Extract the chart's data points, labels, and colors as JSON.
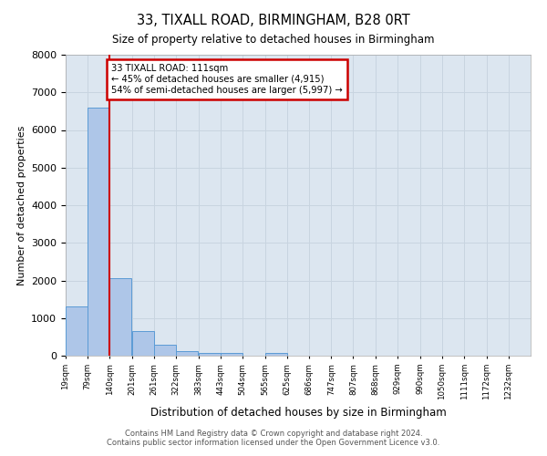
{
  "title": "33, TIXALL ROAD, BIRMINGHAM, B28 0RT",
  "subtitle": "Size of property relative to detached houses in Birmingham",
  "xlabel": "Distribution of detached houses by size in Birmingham",
  "ylabel": "Number of detached properties",
  "bin_labels": [
    "19sqm",
    "79sqm",
    "140sqm",
    "201sqm",
    "261sqm",
    "322sqm",
    "383sqm",
    "443sqm",
    "504sqm",
    "565sqm",
    "625sqm",
    "686sqm",
    "747sqm",
    "807sqm",
    "868sqm",
    "929sqm",
    "990sqm",
    "1050sqm",
    "1111sqm",
    "1172sqm",
    "1232sqm"
  ],
  "bar_heights": [
    1320,
    6600,
    2070,
    650,
    290,
    130,
    80,
    80,
    0,
    80,
    0,
    0,
    0,
    0,
    0,
    0,
    0,
    0,
    0,
    0,
    0
  ],
  "bar_color": "#aec6e8",
  "bar_edge_color": "#5b9bd5",
  "annotation_line0": "33 TIXALL ROAD: 111sqm",
  "annotation_line1": "← 45% of detached houses are smaller (4,915)",
  "annotation_line2": "54% of semi-detached houses are larger (5,997) →",
  "annotation_box_color": "#ffffff",
  "annotation_box_edge": "#cc0000",
  "vline_color": "#cc0000",
  "ylim": [
    0,
    8000
  ],
  "yticks": [
    0,
    1000,
    2000,
    3000,
    4000,
    5000,
    6000,
    7000,
    8000
  ],
  "grid_color": "#c8d4e0",
  "bg_color": "#dce6f0",
  "footer1": "Contains HM Land Registry data © Crown copyright and database right 2024.",
  "footer2": "Contains public sector information licensed under the Open Government Licence v3.0.",
  "bin_edges": [
    19,
    79,
    140,
    201,
    261,
    322,
    383,
    443,
    504,
    565,
    625,
    686,
    747,
    807,
    868,
    929,
    990,
    1050,
    1111,
    1172,
    1232,
    1293
  ]
}
